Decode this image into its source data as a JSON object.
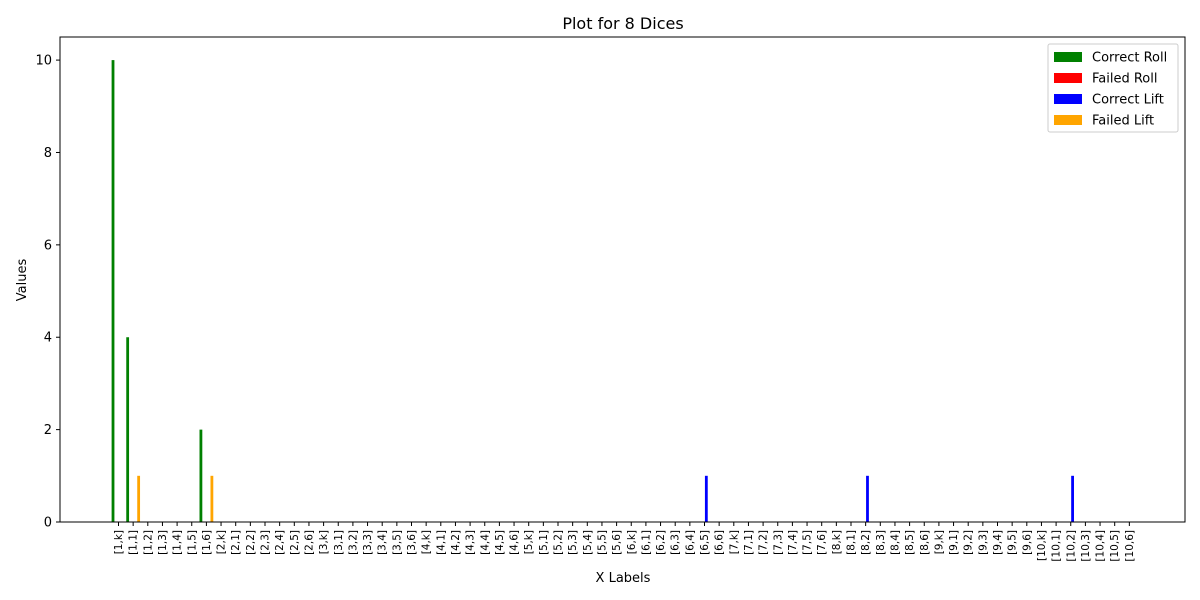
{
  "chart_data": {
    "type": "bar",
    "title": "Plot for 8 Dices",
    "xlabel": "X Labels",
    "ylabel": "Values",
    "ylim": [
      0,
      10.5
    ],
    "yticks": [
      0,
      2,
      4,
      6,
      8,
      10
    ],
    "grid": false,
    "legend_position": "top-right",
    "categories": [
      "[1,k]",
      "[1,1]",
      "[1,2]",
      "[1,3]",
      "[1,4]",
      "[1,5]",
      "[1,6]",
      "[2,k]",
      "[2,1]",
      "[2,2]",
      "[2,3]",
      "[2,4]",
      "[2,5]",
      "[2,6]",
      "[3,k]",
      "[3,1]",
      "[3,2]",
      "[3,3]",
      "[3,4]",
      "[3,5]",
      "[3,6]",
      "[4,k]",
      "[4,1]",
      "[4,2]",
      "[4,3]",
      "[4,4]",
      "[4,5]",
      "[4,6]",
      "[5,k]",
      "[5,1]",
      "[5,2]",
      "[5,3]",
      "[5,4]",
      "[5,5]",
      "[5,6]",
      "[6,k]",
      "[6,1]",
      "[6,2]",
      "[6,3]",
      "[6,4]",
      "[6,5]",
      "[6,6]",
      "[7,k]",
      "[7,1]",
      "[7,2]",
      "[7,3]",
      "[7,4]",
      "[7,5]",
      "[7,6]",
      "[8,k]",
      "[8,1]",
      "[8,2]",
      "[8,3]",
      "[8,4]",
      "[8,5]",
      "[8,6]",
      "[9,k]",
      "[9,1]",
      "[9,2]",
      "[9,3]",
      "[9,4]",
      "[9,5]",
      "[9,6]",
      "[10,k]",
      "[10,1]",
      "[10,2]",
      "[10,3]",
      "[10,4]",
      "[10,5]",
      "[10,6]"
    ],
    "series": [
      {
        "name": "Correct Roll",
        "color": "#008000",
        "values": [
          10,
          4,
          0,
          0,
          0,
          0,
          2,
          0,
          0,
          0,
          0,
          0,
          0,
          0,
          0,
          0,
          0,
          0,
          0,
          0,
          0,
          0,
          0,
          0,
          0,
          0,
          0,
          0,
          0,
          0,
          0,
          0,
          0,
          0,
          0,
          0,
          0,
          0,
          0,
          0,
          0,
          0,
          0,
          0,
          0,
          0,
          0,
          0,
          0,
          0,
          0,
          0,
          0,
          0,
          0,
          0,
          0,
          0,
          0,
          0,
          0,
          0,
          0,
          0,
          0,
          0,
          0,
          0,
          0,
          0
        ]
      },
      {
        "name": "Failed Roll",
        "color": "#ff0000",
        "values": [
          0,
          0,
          0,
          0,
          0,
          0,
          0,
          0,
          0,
          0,
          0,
          0,
          0,
          0,
          0,
          0,
          0,
          0,
          0,
          0,
          0,
          0,
          0,
          0,
          0,
          0,
          0,
          0,
          0,
          0,
          0,
          0,
          0,
          0,
          0,
          0,
          0,
          0,
          0,
          0,
          0,
          0,
          0,
          0,
          0,
          0,
          0,
          0,
          0,
          0,
          0,
          0,
          0,
          0,
          0,
          0,
          0,
          0,
          0,
          0,
          0,
          0,
          0,
          0,
          0,
          0,
          0,
          0,
          0,
          0
        ]
      },
      {
        "name": "Correct Lift",
        "color": "#0000ff",
        "values": [
          0,
          0,
          0,
          0,
          0,
          0,
          0,
          0,
          0,
          0,
          0,
          0,
          0,
          0,
          0,
          0,
          0,
          0,
          0,
          0,
          0,
          0,
          0,
          0,
          0,
          0,
          0,
          0,
          0,
          0,
          0,
          0,
          0,
          0,
          0,
          0,
          0,
          0,
          0,
          0,
          1,
          0,
          0,
          0,
          0,
          0,
          0,
          0,
          0,
          0,
          0,
          1,
          0,
          0,
          0,
          0,
          0,
          0,
          0,
          0,
          0,
          0,
          0,
          0,
          0,
          1,
          0,
          0,
          0,
          0
        ]
      },
      {
        "name": "Failed Lift",
        "color": "#ffa500",
        "values": [
          0,
          1,
          0,
          0,
          0,
          0,
          1,
          0,
          0,
          0,
          0,
          0,
          0,
          0,
          0,
          0,
          0,
          0,
          0,
          0,
          0,
          0,
          0,
          0,
          0,
          0,
          0,
          0,
          0,
          0,
          0,
          0,
          0,
          0,
          0,
          0,
          0,
          0,
          0,
          0,
          0,
          0,
          0,
          0,
          0,
          0,
          0,
          0,
          0,
          0,
          0,
          0,
          0,
          0,
          0,
          0,
          0,
          0,
          0,
          0,
          0,
          0,
          0,
          0,
          0,
          0,
          0,
          0,
          0,
          0
        ]
      }
    ]
  }
}
